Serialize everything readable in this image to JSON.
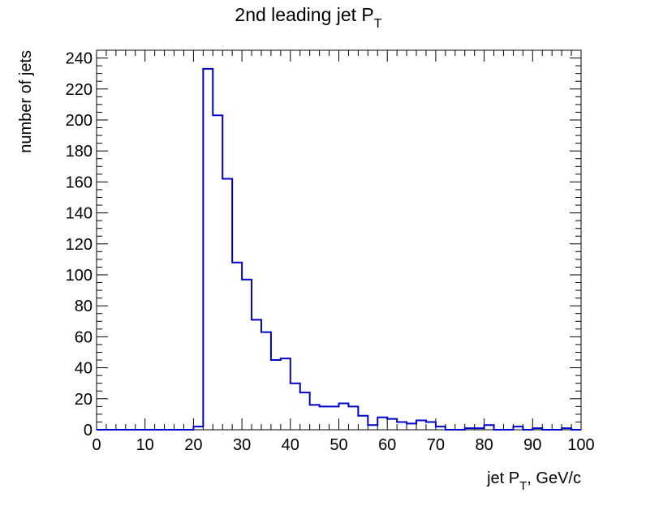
{
  "chart_data": {
    "type": "histogram",
    "title": "2nd leading jet P",
    "title_subscript": "T",
    "xlabel_pre": "jet P",
    "xlabel_sub": "T",
    "xlabel_post": ", GeV/c",
    "ylabel": "number of jets",
    "xlim": [
      0,
      100
    ],
    "ylim": [
      0,
      245
    ],
    "x_ticks": [
      0,
      10,
      20,
      30,
      40,
      50,
      60,
      70,
      80,
      90,
      100
    ],
    "y_ticks": [
      0,
      20,
      40,
      60,
      80,
      100,
      120,
      140,
      160,
      180,
      200,
      220,
      240
    ],
    "bin_width": 2,
    "bin_edges_start": 0,
    "values": [
      0,
      0,
      0,
      0,
      0,
      0,
      0,
      0,
      0,
      0,
      2,
      233,
      203,
      162,
      108,
      97,
      71,
      63,
      45,
      46,
      30,
      24,
      16,
      15,
      15,
      17,
      15,
      9,
      3,
      8,
      7,
      5,
      4,
      6,
      5,
      2,
      0,
      0,
      1,
      1,
      3,
      0,
      0,
      2,
      0,
      1,
      0,
      0,
      1,
      0
    ],
    "line_color": "#0000cc",
    "grid": false,
    "legend": "none"
  }
}
